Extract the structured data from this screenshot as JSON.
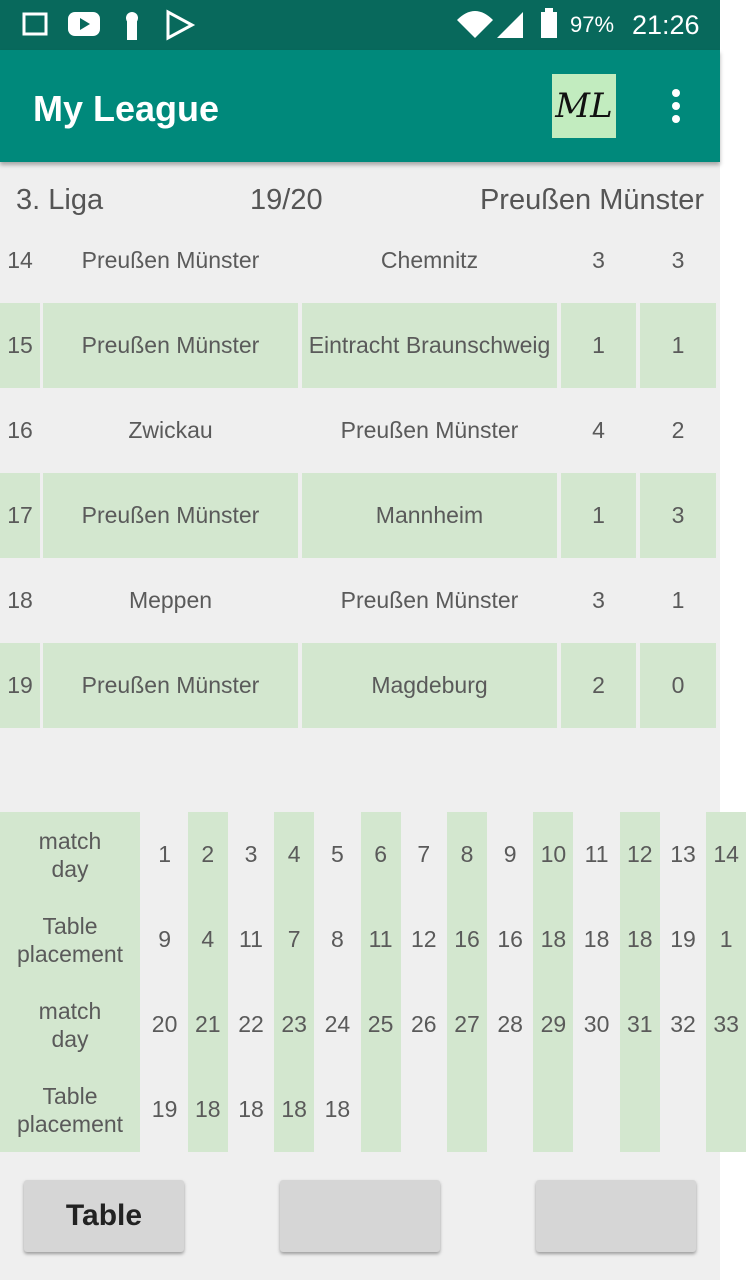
{
  "status_bar": {
    "battery": "97%",
    "time": "21:26"
  },
  "app_bar": {
    "title": "My League",
    "logo": "ML"
  },
  "header": {
    "league": "3. Liga",
    "season": "19/20",
    "team": "Preußen Münster"
  },
  "matches": [
    [
      14,
      "Preußen Münster",
      "Chemnitz",
      3,
      3
    ],
    [
      15,
      "Preußen Münster",
      "Eintracht Braunschweig",
      1,
      1
    ],
    [
      16,
      "Zwickau",
      "Preußen Münster",
      4,
      2
    ],
    [
      17,
      "Preußen Münster",
      "Mannheim",
      1,
      3
    ],
    [
      18,
      "Meppen",
      "Preußen Münster",
      3,
      1
    ],
    [
      19,
      "Preußen Münster",
      "Magdeburg",
      2,
      0
    ]
  ],
  "stats": [
    {
      "label": "match day",
      "values": [
        1,
        2,
        3,
        4,
        5,
        6,
        7,
        8,
        9,
        10,
        11,
        12,
        13,
        14
      ]
    },
    {
      "label": "Table placement",
      "values": [
        9,
        4,
        11,
        7,
        8,
        11,
        12,
        16,
        16,
        18,
        18,
        18,
        19,
        1
      ]
    },
    {
      "label": "match day",
      "values": [
        20,
        21,
        22,
        23,
        24,
        25,
        26,
        27,
        28,
        29,
        30,
        31,
        32,
        33
      ]
    },
    {
      "label": "Table placement",
      "values": [
        19,
        18,
        18,
        18,
        18
      ]
    }
  ],
  "buttons": [
    "Table"
  ]
}
